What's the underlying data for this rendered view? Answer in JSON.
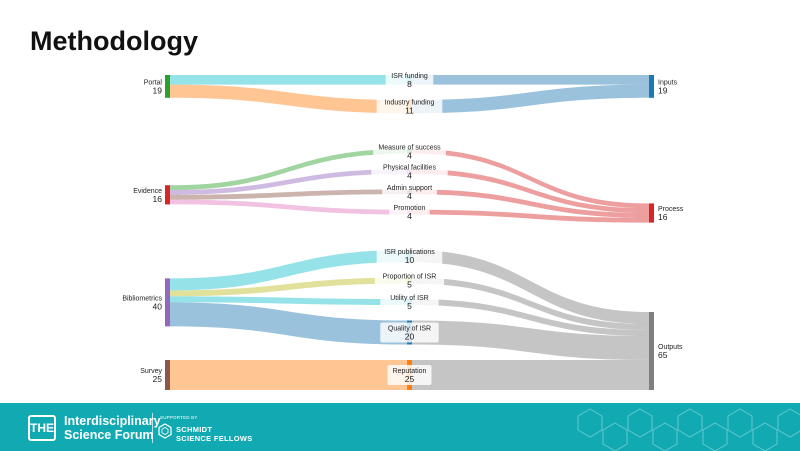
{
  "slide": {
    "title": "Methodology"
  },
  "chart_data": {
    "type": "sankey",
    "sources": [
      {
        "name": "Portal",
        "value": 19
      },
      {
        "name": "Evidence",
        "value": 16
      },
      {
        "name": "Bibliometrics",
        "value": 40
      },
      {
        "name": "Survey",
        "value": 25
      }
    ],
    "metrics": [
      {
        "name": "ISR funding",
        "value": 8
      },
      {
        "name": "Industry funding",
        "value": 11
      },
      {
        "name": "Measure of success",
        "value": 4
      },
      {
        "name": "Physical facilities",
        "value": 4
      },
      {
        "name": "Admin support",
        "value": 4
      },
      {
        "name": "Promotion",
        "value": 4
      },
      {
        "name": "ISR publications",
        "value": 10
      },
      {
        "name": "Proportion of ISR",
        "value": 5
      },
      {
        "name": "Utility of ISR",
        "value": 5
      },
      {
        "name": "Quality of ISR",
        "value": 20
      },
      {
        "name": "Reputation",
        "value": 25
      }
    ],
    "targets": [
      {
        "name": "Inputs",
        "value": 19
      },
      {
        "name": "Process",
        "value": 16
      },
      {
        "name": "Outputs",
        "value": 65
      }
    ],
    "links_left": [
      {
        "source": "Portal",
        "target": "ISR funding",
        "value": 8
      },
      {
        "source": "Portal",
        "target": "Industry funding",
        "value": 11
      },
      {
        "source": "Evidence",
        "target": "Measure of success",
        "value": 4
      },
      {
        "source": "Evidence",
        "target": "Physical facilities",
        "value": 4
      },
      {
        "source": "Evidence",
        "target": "Admin support",
        "value": 4
      },
      {
        "source": "Evidence",
        "target": "Promotion",
        "value": 4
      },
      {
        "source": "Bibliometrics",
        "target": "ISR publications",
        "value": 10
      },
      {
        "source": "Bibliometrics",
        "target": "Proportion of ISR",
        "value": 5
      },
      {
        "source": "Bibliometrics",
        "target": "Utility of ISR",
        "value": 5
      },
      {
        "source": "Bibliometrics",
        "target": "Quality of ISR",
        "value": 20
      },
      {
        "source": "Survey",
        "target": "Reputation",
        "value": 25
      }
    ],
    "links_right": [
      {
        "source": "ISR funding",
        "target": "Inputs",
        "value": 8
      },
      {
        "source": "Industry funding",
        "target": "Inputs",
        "value": 11
      },
      {
        "source": "Measure of success",
        "target": "Process",
        "value": 4
      },
      {
        "source": "Physical facilities",
        "target": "Process",
        "value": 4
      },
      {
        "source": "Admin support",
        "target": "Process",
        "value": 4
      },
      {
        "source": "Promotion",
        "target": "Process",
        "value": 4
      },
      {
        "source": "ISR publications",
        "target": "Outputs",
        "value": 10
      },
      {
        "source": "Proportion of ISR",
        "target": "Outputs",
        "value": 5
      },
      {
        "source": "Utility of ISR",
        "target": "Outputs",
        "value": 5
      },
      {
        "source": "Quality of ISR",
        "target": "Outputs",
        "value": 20
      },
      {
        "source": "Reputation",
        "target": "Outputs",
        "value": 25
      }
    ],
    "colors": {
      "Portal": "#2ca02c",
      "Evidence": "#d62728",
      "Bibliometrics": "#9467bd",
      "Survey": "#8c564b",
      "Inputs": "#1f77b4",
      "Process": "#d62728",
      "Outputs": "#7f7f7f",
      "ISR funding": "#17becf",
      "Industry funding": "#ff7f0e",
      "Measure of success": "#2ca02c",
      "Physical facilities": "#9467bd",
      "Admin support": "#8c564b",
      "Promotion": "#e377c2",
      "ISR publications": "#17becf",
      "Proportion of ISR": "#bcbd22",
      "Utility of ISR": "#17becf",
      "Quality of ISR": "#1f77b4",
      "Reputation": "#ff7f0e"
    }
  },
  "footer": {
    "logo_badge": "THE",
    "forum_name_line1": "Interdisciplinary",
    "forum_name_line2": "Science Forum",
    "supported_by": "SUPPORTED BY",
    "partner_line1": "SCHMIDT",
    "partner_line2": "SCIENCE FELLOWS",
    "color": "#12aab2"
  }
}
